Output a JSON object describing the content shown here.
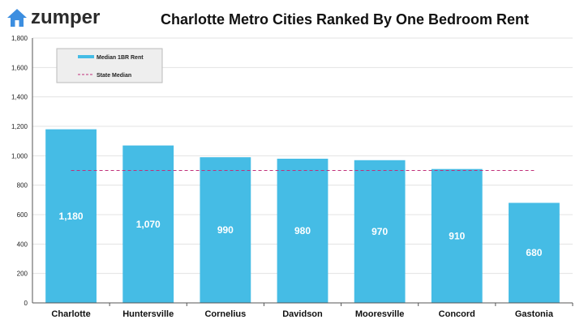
{
  "logo": {
    "text": "zumper",
    "icon": "house-icon",
    "color": "#3c8ee0"
  },
  "chart_data": {
    "type": "bar",
    "title": "Charlotte Metro Cities Ranked By One Bedroom Rent",
    "categories": [
      "Charlotte",
      "Huntersville",
      "Cornelius",
      "Davidson",
      "Mooresville",
      "Concord",
      "Gastonia"
    ],
    "series": [
      {
        "name": "Median 1BR Rent",
        "values": [
          1180,
          1070,
          990,
          980,
          970,
          910,
          680
        ],
        "color": "#45bce5"
      }
    ],
    "data_labels": [
      "1,180",
      "1,070",
      "990",
      "980",
      "970",
      "910",
      "680"
    ],
    "reference_line": {
      "name": "State Median",
      "value": 900,
      "color": "#c0307a",
      "style": "dashed"
    },
    "yticks": [
      0,
      200,
      400,
      600,
      800,
      1000,
      1200,
      1400,
      1600,
      1800
    ],
    "ytick_labels": [
      "0",
      "200",
      "400",
      "600",
      "800",
      "1,000",
      "1,200",
      "1,400",
      "1,600",
      "1,800"
    ],
    "ylim": [
      0,
      1800
    ],
    "xlabel": "",
    "ylabel": "",
    "grid": true,
    "legend": {
      "position": "top-left",
      "entries": [
        "Median 1BR Rent",
        "State Median"
      ]
    }
  }
}
